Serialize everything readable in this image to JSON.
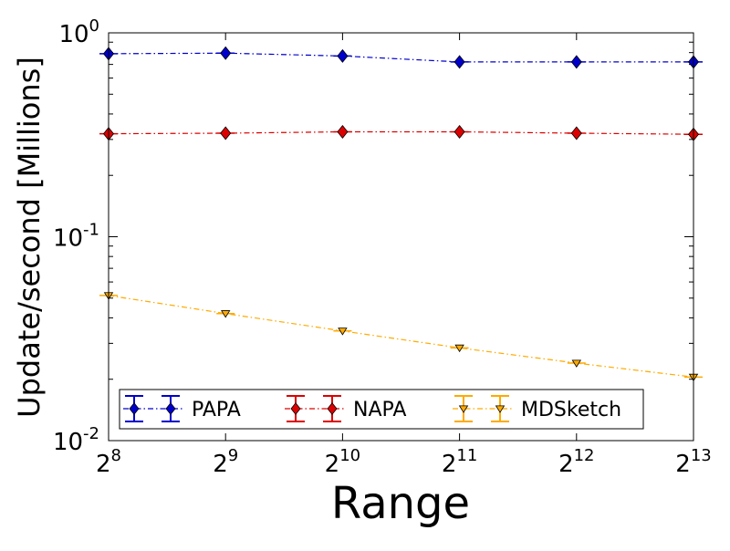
{
  "chart_data": {
    "type": "line",
    "xlabel": "Range",
    "ylabel": "Update/second [Millions]",
    "yscale": "log",
    "ylim": [
      0.01,
      1
    ],
    "xlim": [
      256,
      8192
    ],
    "xscale": "log2",
    "x": [
      256,
      512,
      1024,
      2048,
      4096,
      8192
    ],
    "x_tick_labels": [
      {
        "base": "2",
        "exp": "8"
      },
      {
        "base": "2",
        "exp": "9"
      },
      {
        "base": "2",
        "exp": "10"
      },
      {
        "base": "2",
        "exp": "11"
      },
      {
        "base": "2",
        "exp": "12"
      },
      {
        "base": "2",
        "exp": "13"
      }
    ],
    "y_tick_labels": [
      {
        "value": 1,
        "base": "10",
        "exp": "0"
      },
      {
        "value": 0.1,
        "base": "10",
        "exp": "-1"
      },
      {
        "value": 0.01,
        "base": "10",
        "exp": "-2"
      }
    ],
    "legend_position": "bottom",
    "grid": false,
    "series": [
      {
        "name": "PAPA",
        "color": "#0000cc",
        "marker": "diamond",
        "values": [
          0.79,
          0.795,
          0.77,
          0.72,
          0.72,
          0.72
        ]
      },
      {
        "name": "NAPA",
        "color": "#dd0000",
        "marker": "diamond",
        "values": [
          0.32,
          0.322,
          0.327,
          0.327,
          0.322,
          0.318
        ]
      },
      {
        "name": "MDSketch",
        "color": "#ffaa00",
        "marker": "triangle-down",
        "values": [
          0.0515,
          0.042,
          0.0345,
          0.0285,
          0.024,
          0.0205
        ]
      }
    ]
  }
}
